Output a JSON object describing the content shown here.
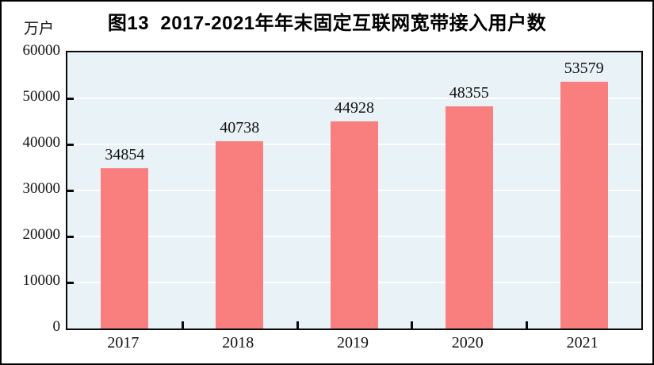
{
  "chart_data": {
    "type": "bar",
    "title": "图13  2017-2021年年末固定互联网宽带接入用户数",
    "figure_number": "图13",
    "unit_label": "万户",
    "categories": [
      "2017",
      "2018",
      "2019",
      "2020",
      "2021"
    ],
    "values": [
      34854,
      40738,
      44928,
      48355,
      53579
    ],
    "data_labels": [
      "34854",
      "40738",
      "44928",
      "48355",
      "53579"
    ],
    "ylim": [
      0,
      60000
    ],
    "ytick_interval": 10000,
    "yticks": [
      0,
      10000,
      20000,
      30000,
      40000,
      50000,
      60000
    ],
    "grid": true,
    "legend_position": "none",
    "colors": {
      "bar": "#F97F7F",
      "plot_background": "#E9F2F7",
      "gridline": "#FFFFFF",
      "axis": "#0A0A0A",
      "text": "#111111",
      "title": "#000000",
      "figure_background": "#FFFFFF"
    }
  }
}
